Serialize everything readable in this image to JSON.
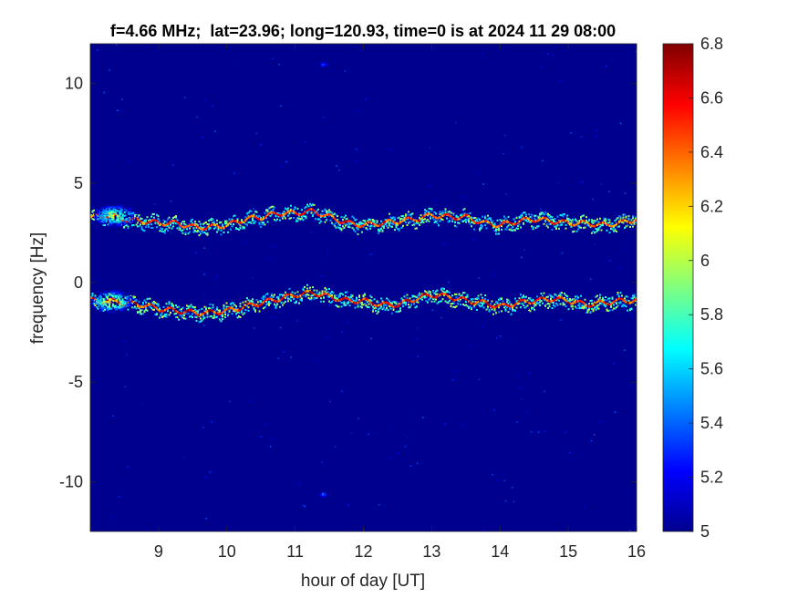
{
  "chart_data": {
    "type": "heatmap",
    "title": "f=4.66 MHz;  lat=23.96; long=120.93, time=0 is at 2024 11 29 08:00",
    "xlabel": "hour of day [UT]",
    "ylabel": "frequency [Hz]",
    "xlim": [
      8.0,
      16.0
    ],
    "ylim": [
      -12.5,
      12.0
    ],
    "x_ticks": [
      9,
      10,
      11,
      12,
      13,
      14,
      15,
      16
    ],
    "y_ticks": [
      -10,
      -5,
      0,
      5,
      10
    ],
    "colorbar": {
      "colormap": "jet",
      "range": [
        5.0,
        6.8
      ],
      "ticks": [
        "6.8",
        "6.6",
        "6.4",
        "6.2",
        "6",
        "5.8",
        "5.6",
        "5.4",
        "5.2",
        "5"
      ],
      "tick_values": [
        6.8,
        6.6,
        6.4,
        6.2,
        6.0,
        5.8,
        5.6,
        5.4,
        5.2,
        5.0
      ]
    },
    "background_value": 5.0,
    "traces": [
      {
        "x": [
          8.0,
          8.25,
          8.5,
          8.75,
          9.0,
          9.25,
          9.5,
          9.75,
          10.0,
          10.25,
          10.5,
          10.75,
          11.0,
          11.25,
          11.5,
          11.75,
          12.0,
          12.25,
          12.5,
          12.75,
          13.0,
          13.25,
          13.5,
          13.75,
          14.0,
          14.25,
          14.5,
          14.75,
          15.0,
          15.25,
          15.5,
          15.75,
          16.0
        ],
        "y": [
          3.3,
          3.4,
          3.2,
          3.1,
          3.0,
          3.0,
          2.8,
          2.8,
          2.9,
          3.2,
          3.3,
          3.5,
          3.5,
          3.6,
          3.3,
          3.0,
          2.9,
          3.0,
          3.1,
          3.2,
          3.4,
          3.3,
          3.3,
          3.0,
          2.9,
          3.1,
          3.2,
          3.1,
          3.0,
          3.0,
          2.9,
          3.0,
          3.2
        ],
        "peak": 6.7
      },
      {
        "x": [
          8.0,
          8.25,
          8.5,
          8.75,
          9.0,
          9.25,
          9.5,
          9.75,
          10.0,
          10.25,
          10.5,
          10.75,
          11.0,
          11.25,
          11.5,
          11.75,
          12.0,
          12.25,
          12.5,
          12.75,
          13.0,
          13.25,
          13.5,
          13.75,
          14.0,
          14.25,
          14.5,
          14.75,
          15.0,
          15.25,
          15.5,
          15.75,
          16.0
        ],
        "y": [
          -0.9,
          -0.9,
          -1.0,
          -1.1,
          -1.3,
          -1.4,
          -1.5,
          -1.5,
          -1.4,
          -1.2,
          -1.0,
          -0.8,
          -0.6,
          -0.5,
          -0.7,
          -0.9,
          -0.9,
          -1.1,
          -1.1,
          -0.8,
          -0.6,
          -0.7,
          -0.9,
          -1.0,
          -1.2,
          -1.0,
          -0.9,
          -0.8,
          -0.9,
          -1.1,
          -1.0,
          -0.9,
          -0.9
        ],
        "peak": 6.8
      }
    ],
    "blobs": [
      {
        "x": 8.3,
        "y": -0.9,
        "peak": 6.6
      },
      {
        "x": 8.35,
        "y": 3.4,
        "peak": 6.3
      },
      {
        "x": 11.4,
        "y": 11.0,
        "peak": 5.5
      },
      {
        "x": 11.4,
        "y": -10.6,
        "peak": 5.6
      }
    ]
  }
}
